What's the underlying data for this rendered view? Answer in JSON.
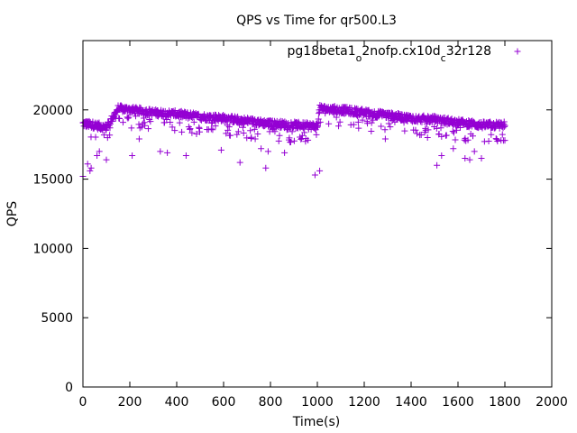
{
  "chart_data": {
    "type": "scatter",
    "title": "QPS vs Time for qr500.L3",
    "xlabel": "Time(s)",
    "ylabel": "QPS",
    "xlim": [
      0,
      2000
    ],
    "ylim": [
      0,
      25000
    ],
    "xticks": [
      0,
      200,
      400,
      600,
      800,
      1000,
      1200,
      1400,
      1600,
      1800,
      2000
    ],
    "yticks": [
      0,
      5000,
      10000,
      15000,
      20000
    ],
    "grid": false,
    "legend_position": "top-right",
    "marker": "+",
    "color": "#9400d3",
    "series": [
      {
        "name_parts": [
          {
            "text": "pg18beta1",
            "sub": false
          },
          {
            "text": "o",
            "sub": true
          },
          {
            "text": "2nofp.cx10d",
            "sub": false
          },
          {
            "text": "c",
            "sub": true
          },
          {
            "text": "32r128",
            "sub": false
          }
        ],
        "x": [
          0,
          50,
          100,
          150,
          200,
          300,
          400,
          500,
          600,
          700,
          800,
          900,
          1000,
          1010,
          1050,
          1100,
          1200,
          1300,
          1400,
          1500,
          1600,
          1700,
          1800
        ],
        "y": [
          19000,
          18900,
          18700,
          20100,
          20000,
          19800,
          19700,
          19500,
          19400,
          19200,
          19000,
          18900,
          18800,
          20100,
          20050,
          20000,
          19800,
          19600,
          19400,
          19300,
          19100,
          18900,
          18900
        ],
        "outliers": [
          [
            0,
            15200
          ],
          [
            20,
            16100
          ],
          [
            30,
            15600
          ],
          [
            35,
            15800
          ],
          [
            60,
            16700
          ],
          [
            70,
            17000
          ],
          [
            100,
            16400
          ],
          [
            210,
            16700
          ],
          [
            240,
            17900
          ],
          [
            330,
            17000
          ],
          [
            360,
            16900
          ],
          [
            440,
            16700
          ],
          [
            590,
            17100
          ],
          [
            670,
            16200
          ],
          [
            760,
            17200
          ],
          [
            780,
            15800
          ],
          [
            790,
            17000
          ],
          [
            860,
            16900
          ],
          [
            990,
            15300
          ],
          [
            1010,
            15600
          ],
          [
            1290,
            17900
          ],
          [
            1470,
            18000
          ],
          [
            1510,
            16000
          ],
          [
            1530,
            16700
          ],
          [
            1580,
            17200
          ],
          [
            1630,
            16500
          ],
          [
            1650,
            16400
          ],
          [
            1670,
            17000
          ],
          [
            1700,
            16500
          ],
          [
            1800,
            17800
          ]
        ]
      }
    ]
  }
}
